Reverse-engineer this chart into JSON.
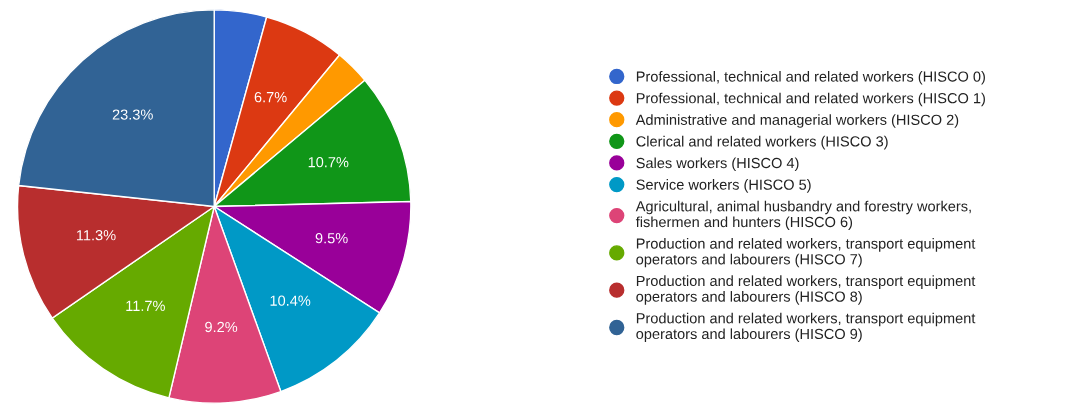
{
  "chart_data": {
    "type": "pie",
    "categories": [
      "Professional, technical and related workers (HISCO 0)",
      "Professional, technical and related workers (HISCO 1)",
      "Administrative and managerial workers (HISCO 2)",
      "Clerical and related workers (HISCO 3)",
      "Sales workers (HISCO 4)",
      "Service workers (HISCO 5)",
      "Agricultural, animal husbandry and forestry workers,\nfishermen and hunters (HISCO 6)",
      "Production and related workers, transport equipment\noperators and labourers (HISCO 7)",
      "Production and related workers, transport equipment\noperators and labourers (HISCO 8)",
      "Production and related workers, transport equipment\noperators and labourers (HISCO 9)"
    ],
    "values": [
      4.3,
      6.7,
      2.9,
      10.7,
      9.5,
      10.4,
      9.2,
      11.7,
      11.3,
      23.3
    ],
    "colors": [
      "#3366cc",
      "#dc3912",
      "#ff9900",
      "#109618",
      "#990099",
      "#0099c6",
      "#dd4477",
      "#66aa00",
      "#b82e2e",
      "#316395"
    ],
    "value_labels": [
      null,
      "6.7%",
      null,
      "10.7%",
      "9.5%",
      "10.4%",
      "9.2%",
      "11.7%",
      "11.3%",
      "23.3%"
    ],
    "legend": "right"
  }
}
